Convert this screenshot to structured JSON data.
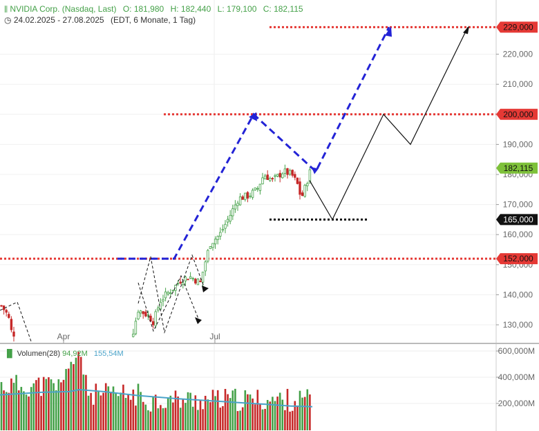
{
  "header": {
    "title": "NVIDIA Corp. (Nasdaq, Last)",
    "open_label": "O:",
    "open": "181,980",
    "high_label": "H:",
    "high": "182,440",
    "low_label": "L:",
    "low": "179,100",
    "close_label": "C:",
    "close": "182,115",
    "date_range": "24.02.2025 - 27.08.2025",
    "period_info": "(EDT, 6 Monate, 1 Tag)"
  },
  "volume_header": {
    "label": "Volumen(28)",
    "value": "94,92M",
    "ma_value": "155,54M"
  },
  "colors": {
    "up": "#43a047",
    "down": "#c62828",
    "resistance": "#e53935",
    "projection": "#2323d6",
    "volume_ma": "#4aa3c9",
    "last_price": "#7ec13a",
    "support_label": "#111111"
  },
  "chart_data": [
    {
      "type": "candlestick",
      "y_ticks": [
        130000,
        140000,
        150000,
        160000,
        170000,
        180000,
        190000,
        200000,
        210000,
        220000,
        229000
      ],
      "y_tick_labels": [
        "130,000",
        "140,000",
        "150,000",
        "160,000",
        "170,000",
        "180,000",
        "190,000",
        "200,000",
        "210,000",
        "220,000",
        ""
      ],
      "x_labels": [
        "Apr",
        "Jul"
      ],
      "ylim": [
        125000,
        233000
      ],
      "horizontal_levels": [
        {
          "value": 229000,
          "label": "229,000",
          "style": "dotted",
          "color": "#e53935"
        },
        {
          "value": 200000,
          "label": "200,000",
          "style": "dotted",
          "color": "#e53935"
        },
        {
          "value": 152000,
          "label": "152,000",
          "style": "dotted",
          "color": "#e53935"
        },
        {
          "value": 165000,
          "label": "165,000",
          "style": "dotted",
          "color": "#111111"
        }
      ],
      "last_price": {
        "value": 182115,
        "label": "182,115"
      },
      "ohlc": {
        "open": 181980,
        "high": 182440,
        "low": 179100,
        "close": 182115
      },
      "projections": [
        {
          "style": "dashed-blue",
          "points": [
            152000,
            152000,
            200000,
            181000,
            229000
          ]
        },
        {
          "style": "solid-black",
          "points": [
            178000,
            165000,
            200000,
            190000,
            229000
          ]
        }
      ]
    },
    {
      "type": "bar",
      "name": "Volumen(28)",
      "y_ticks": [
        200000000,
        400000000,
        600000000
      ],
      "y_tick_labels": [
        "200,000M",
        "400,000M",
        "600,000M"
      ],
      "ylim": [
        0,
        620000000
      ],
      "last_value": "94,92M",
      "ma_value": "155,54M"
    }
  ]
}
